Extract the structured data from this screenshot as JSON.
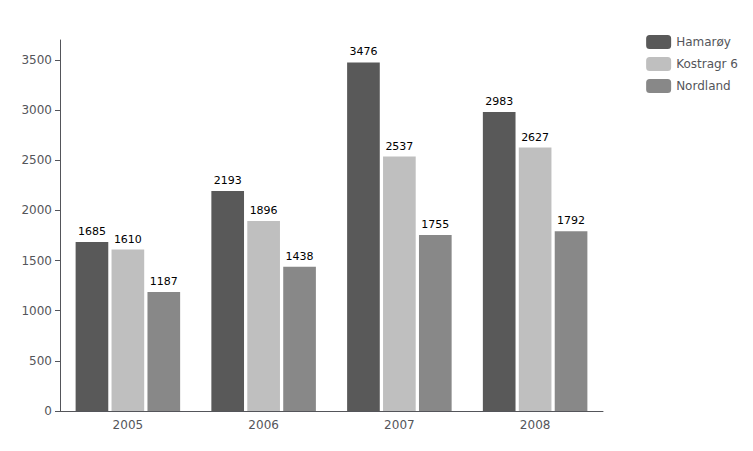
{
  "chart_data": {
    "type": "bar",
    "categories": [
      "2005",
      "2006",
      "2007",
      "2008"
    ],
    "series": [
      {
        "name": "Hamarøy",
        "color": "#595959",
        "values": [
          1685,
          2193,
          3476,
          2983
        ]
      },
      {
        "name": "Kostragr 6",
        "color": "#bfbfbf",
        "values": [
          1610,
          1896,
          2537,
          2627
        ]
      },
      {
        "name": "Nordland",
        "color": "#888888",
        "values": [
          1187,
          1438,
          1755,
          1792
        ]
      }
    ],
    "ylim": [
      0,
      3700
    ],
    "yticks": [
      0,
      500,
      1000,
      1500,
      2000,
      2500,
      3000,
      3500
    ],
    "grid": false,
    "legend": "right",
    "data_labels": true
  }
}
